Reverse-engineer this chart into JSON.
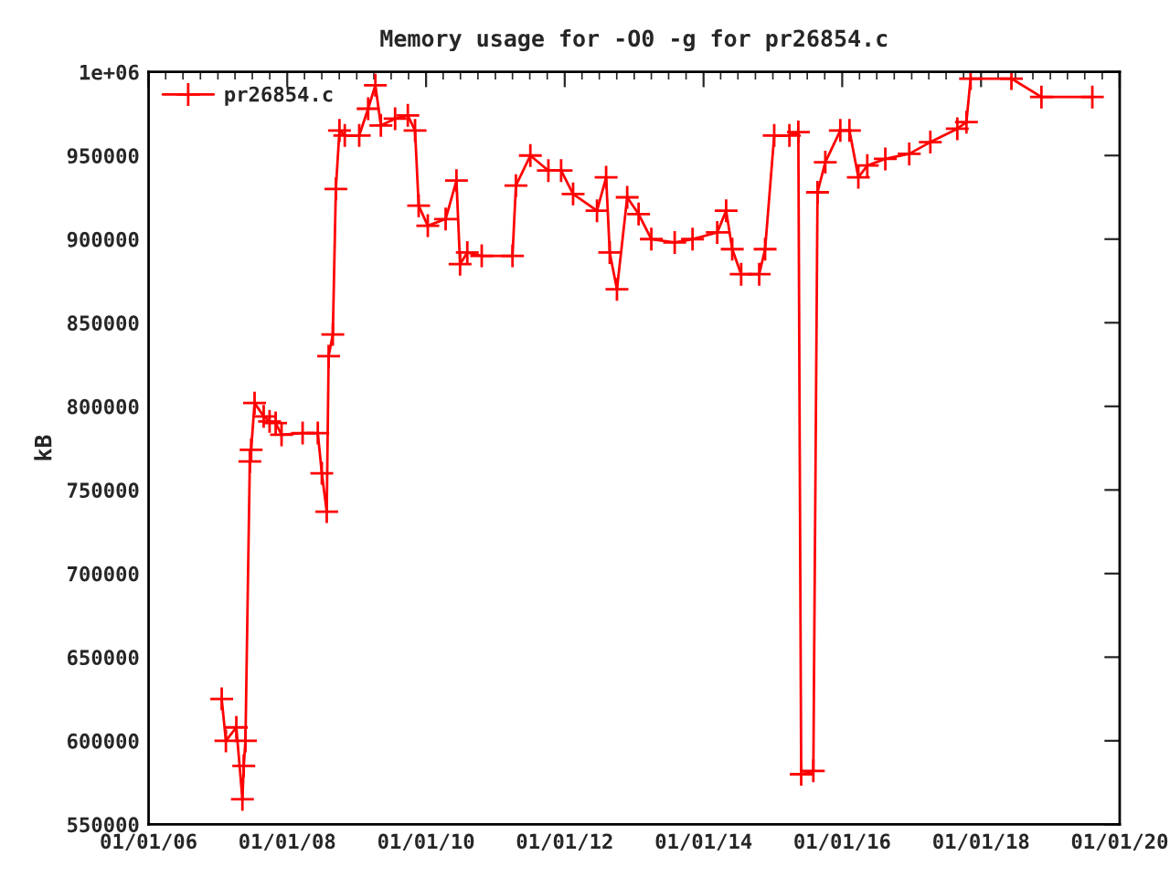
{
  "chart_data": {
    "type": "line",
    "title": "Memory usage for -O0 -g for pr26854.c",
    "ylabel": "kB",
    "x": [
      "2007-01-21",
      "2007-02-12",
      "2007-04-08",
      "2007-05-10",
      "2007-05-17",
      "2007-05-26",
      "2007-06-18",
      "2007-06-25",
      "2007-07-13",
      "2007-08-30",
      "2007-09-30",
      "2007-11-01",
      "2007-12-02",
      "2008-03-22",
      "2008-06-10",
      "2008-07-01",
      "2008-07-27",
      "2008-08-06",
      "2008-08-28",
      "2008-09-13",
      "2008-10-02",
      "2008-10-30",
      "2009-01-14",
      "2009-03-02",
      "2009-04-09",
      "2009-05-08",
      "2009-07-22",
      "2009-09-27",
      "2009-11-04",
      "2009-11-23",
      "2010-01-10",
      "2010-04-14",
      "2010-06-10",
      "2010-06-29",
      "2010-08-06",
      "2010-10-21",
      "2011-04-01",
      "2011-04-19",
      "2011-07-04",
      "2011-10-07",
      "2011-12-13",
      "2012-02-14",
      "2012-06-19",
      "2012-08-06",
      "2012-08-25",
      "2012-10-02",
      "2012-11-25",
      "2013-01-24",
      "2013-04-01",
      "2013-08-02",
      "2013-11-04",
      "2014-03-14",
      "2014-04-30",
      "2014-06-01",
      "2014-07-18",
      "2014-10-21",
      "2014-11-21",
      "2015-01-08",
      "2015-03-29",
      "2015-05-15",
      "2015-05-30",
      "2015-08-02",
      "2015-08-24",
      "2015-10-04",
      "2015-12-22",
      "2016-02-08",
      "2016-03-26",
      "2016-05-12",
      "2016-08-15",
      "2016-12-19",
      "2017-04-09",
      "2017-08-29",
      "2017-10-16",
      "2017-11-07",
      "2018-06-10",
      "2018-11-15",
      "2019-08-10"
    ],
    "series": [
      {
        "name": "pr26854.c",
        "color": "#ff0000",
        "values": [
          625000,
          600000,
          608000,
          565000,
          585000,
          600000,
          767000,
          774000,
          802000,
          794000,
          791000,
          790000,
          783000,
          784000,
          784000,
          760000,
          737000,
          830000,
          843000,
          930000,
          965000,
          962000,
          962000,
          978000,
          992000,
          968000,
          972000,
          974000,
          965000,
          920000,
          908000,
          912000,
          935000,
          885000,
          892000,
          890000,
          890000,
          932000,
          950000,
          941000,
          941000,
          927000,
          917000,
          937000,
          892000,
          870000,
          925000,
          915000,
          900000,
          898000,
          900000,
          904000,
          917000,
          894000,
          879000,
          879000,
          894000,
          962000,
          962000,
          964000,
          580000,
          582000,
          928000,
          946000,
          965000,
          965000,
          937000,
          944000,
          948000,
          951000,
          958000,
          966000,
          970000,
          996000,
          996000,
          985000,
          985000
        ]
      }
    ],
    "xlim": [
      "2006-01-01",
      "2020-01-01"
    ],
    "xticks": [
      {
        "value": "2006-01-01",
        "label": "01/01/06"
      },
      {
        "value": "2008-01-01",
        "label": "01/01/08"
      },
      {
        "value": "2010-01-01",
        "label": "01/01/10"
      },
      {
        "value": "2012-01-01",
        "label": "01/01/12"
      },
      {
        "value": "2014-01-01",
        "label": "01/01/14"
      },
      {
        "value": "2016-01-01",
        "label": "01/01/16"
      },
      {
        "value": "2018-01-01",
        "label": "01/01/18"
      },
      {
        "value": "2020-01-01",
        "label": "01/01/20"
      }
    ],
    "ylim": [
      550000,
      1000000
    ],
    "yticks": [
      550000,
      600000,
      650000,
      700000,
      750000,
      800000,
      850000,
      900000,
      950000,
      {
        "value": 1000000,
        "label": "1e+06"
      }
    ],
    "marker": "cross",
    "line_style": "solid",
    "legend": "top left",
    "grid": false
  }
}
